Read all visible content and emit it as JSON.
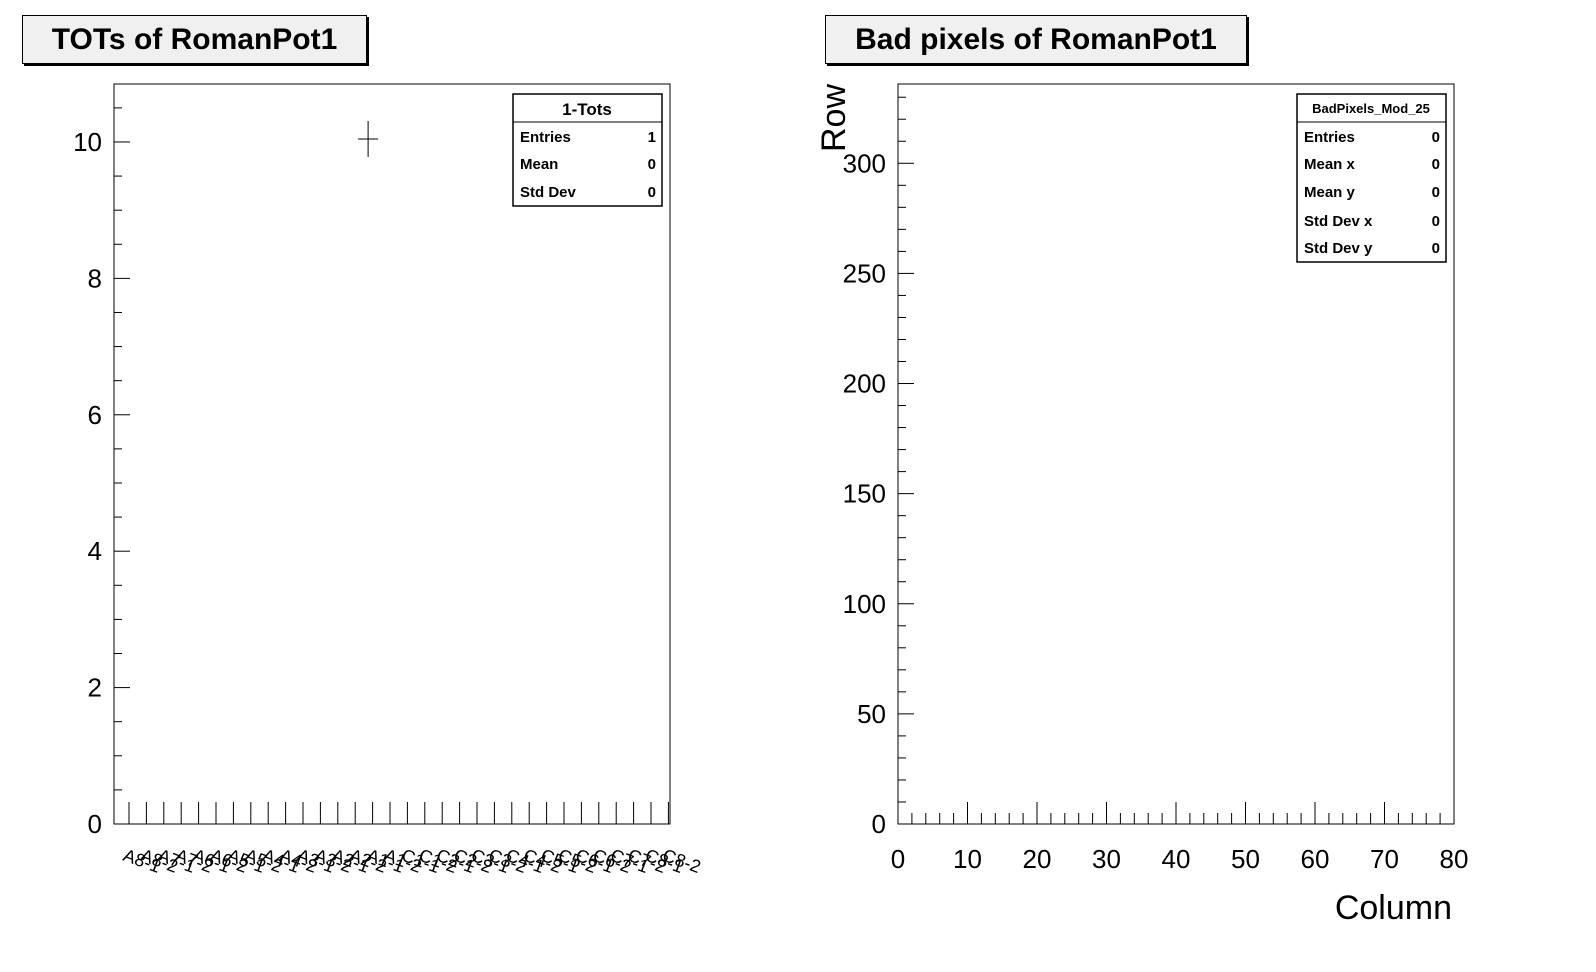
{
  "chart_data": [
    {
      "type": "scatter",
      "title": "TOTs  of RomanPot1",
      "xlabel": "",
      "ylabel": "",
      "ylim": [
        0,
        10.85
      ],
      "yticks": [
        0,
        2,
        4,
        6,
        8,
        10
      ],
      "categories": [
        "A8-1",
        "A8-2",
        "A7-1",
        "A7-2",
        "A6-1",
        "A6-2",
        "A5-1",
        "A5-2",
        "A4-1",
        "A4-2",
        "A3-1",
        "A3-2",
        "A2-1",
        "A2-2",
        "A1-1",
        "A1-2",
        "C1-1",
        "C1-2",
        "C2-1",
        "C2-2",
        "C3-1",
        "C3-2",
        "C4-1",
        "C4-2",
        "C5-1",
        "C5-2",
        "C6-1",
        "C6-2",
        "C7-1",
        "C7-2",
        "C8-1",
        "C8-2"
      ],
      "points": [
        {
          "x": "A1-1",
          "y": 10
        }
      ],
      "stats": {
        "name": "1-Tots",
        "rows": [
          {
            "label": "Entries",
            "value": "1"
          },
          {
            "label": "Mean",
            "value": "0"
          },
          {
            "label": "Std Dev",
            "value": "0"
          }
        ]
      }
    },
    {
      "type": "heatmap",
      "title": "Bad pixels of RomanPot1",
      "xlabel": "Column",
      "ylabel": "Row",
      "xlim": [
        0,
        80
      ],
      "ylim": [
        0,
        336
      ],
      "xticks": [
        0,
        10,
        20,
        30,
        40,
        50,
        60,
        70,
        80
      ],
      "yticks": [
        0,
        50,
        100,
        150,
        200,
        250,
        300
      ],
      "values": [],
      "stats": {
        "name": "BadPixels_Mod_25",
        "rows": [
          {
            "label": "Entries",
            "value": "0"
          },
          {
            "label": "Mean x",
            "value": "0"
          },
          {
            "label": "Mean y",
            "value": "0"
          },
          {
            "label": "Std Dev x",
            "value": "0"
          },
          {
            "label": "Std Dev y",
            "value": "0"
          }
        ]
      }
    }
  ]
}
